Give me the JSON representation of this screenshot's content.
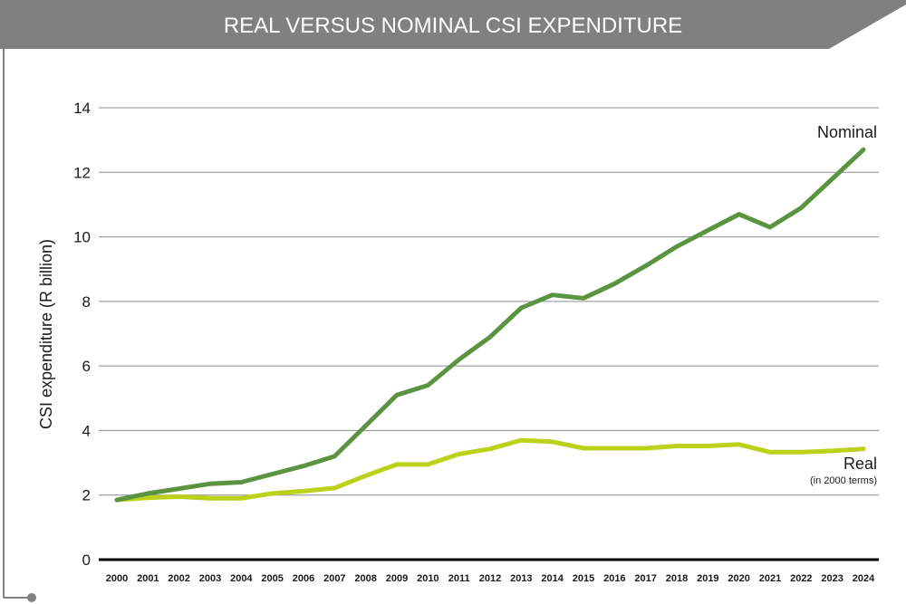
{
  "chart_data": {
    "type": "line",
    "title": "REAL VERSUS NOMINAL CSI EXPENDITURE",
    "ylabel": "CSI expenditure (R billion)",
    "xlabel": "",
    "ylim": [
      0,
      14
    ],
    "yticks": [
      "0",
      "2",
      "4",
      "6",
      "8",
      "10",
      "12",
      "14"
    ],
    "grid": true,
    "x": [
      "2000",
      "2001",
      "2002",
      "2003",
      "2004",
      "2005",
      "2006",
      "2007",
      "2008",
      "2009",
      "2010",
      "2011",
      "2012",
      "2013",
      "2014",
      "2015",
      "2016",
      "2017",
      "2018",
      "2019",
      "2020",
      "2021",
      "2022",
      "2023",
      "2024"
    ],
    "series": [
      {
        "name": "Nominal",
        "color": "#5a9440",
        "values": [
          1.85,
          2.05,
          2.2,
          2.35,
          2.4,
          2.65,
          2.9,
          3.2,
          4.15,
          5.1,
          5.4,
          6.2,
          6.9,
          7.8,
          8.2,
          8.1,
          8.55,
          9.1,
          9.7,
          10.2,
          10.7,
          10.3,
          10.9,
          11.8,
          12.7
        ]
      },
      {
        "name": "Real",
        "sublabel": "(in 2000 terms)",
        "color": "#bcd21a",
        "values": [
          1.85,
          1.92,
          1.95,
          1.9,
          1.9,
          2.05,
          2.12,
          2.22,
          2.6,
          2.95,
          2.95,
          3.27,
          3.43,
          3.7,
          3.65,
          3.45,
          3.45,
          3.45,
          3.52,
          3.52,
          3.57,
          3.33,
          3.33,
          3.37,
          3.43
        ]
      }
    ]
  },
  "colors": {
    "banner": "#808080",
    "axis": "#000000",
    "grid": "#8c8c8c",
    "frame": "#808080"
  }
}
